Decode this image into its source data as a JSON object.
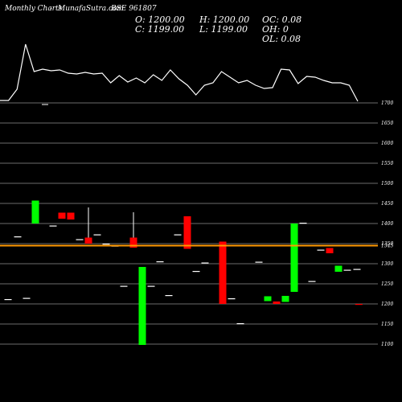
{
  "header": {
    "title": "Monthly Charts",
    "source": "MunafaSutra.com",
    "symbol": "BSE 961807"
  },
  "ohlc": {
    "open": "O: 1200.00",
    "high": "H: 1200.00",
    "oc": "OC: 0.08",
    "close": "C: 1199.00",
    "low": "L: 1199.00",
    "oh": "OH: 0",
    "ol": "OL: 0.08"
  },
  "colors": {
    "background": "#000000",
    "up": "#00ff00",
    "down": "#ff0000",
    "neutral": "#ffffff",
    "reference_line": "#ff9900"
  },
  "chart_data": {
    "type": "candlestick",
    "y_ticks": [
      1700,
      1650,
      1600,
      1550,
      1500,
      1450,
      1400,
      1350,
      1300,
      1250,
      1200,
      1150,
      1100
    ],
    "y_tick_labels": [
      "1700",
      "1650",
      "1600",
      "1550",
      "1500",
      "1450",
      "1400",
      "1350",
      "1300",
      "1250",
      "1200",
      "1150",
      "1100"
    ],
    "ylim": [
      1100,
      1700
    ],
    "reference_level": 1345,
    "reference_label": "1345",
    "grid": true,
    "volume_line": [
      70,
      70,
      56,
      0,
      34,
      31,
      33,
      32,
      36,
      37,
      35,
      37,
      36,
      48,
      39,
      47,
      42,
      48,
      38,
      45,
      32,
      43,
      51,
      63,
      51,
      48,
      34,
      41,
      48,
      45,
      51,
      55,
      54,
      31,
      32,
      49,
      40,
      41,
      45,
      48,
      48,
      51,
      71
    ],
    "candles": [
      {
        "o": 1212,
        "h": 1212,
        "l": 1212,
        "c": 1212
      },
      {
        "o": 1368,
        "h": 1368,
        "l": 1368,
        "c": 1368
      },
      {
        "o": 1215,
        "h": 1215,
        "l": 1215,
        "c": 1215
      },
      {
        "o": 1400,
        "h": 1457,
        "l": 1400,
        "c": 1457
      },
      {
        "o": 1395,
        "h": 1395,
        "l": 1395,
        "c": 1395
      },
      {
        "o": 1427,
        "h": 1427,
        "l": 1412,
        "c": 1412
      },
      {
        "o": 1427,
        "h": 1427,
        "l": 1410,
        "c": 1410
      },
      {
        "o": 1361,
        "h": 1361,
        "l": 1361,
        "c": 1361
      },
      {
        "o": 1365,
        "h": 1440,
        "l": 1350,
        "c": 1350
      },
      {
        "o": 1373,
        "h": 1373,
        "l": 1373,
        "c": 1373
      },
      {
        "o": 1350,
        "h": 1350,
        "l": 1350,
        "c": 1350
      },
      {
        "o": 1345,
        "h": 1345,
        "l": 1345,
        "c": 1345
      },
      {
        "o": 1245,
        "h": 1245,
        "l": 1245,
        "c": 1245
      },
      {
        "o": 1365,
        "h": 1428,
        "l": 1340,
        "c": 1340
      },
      {
        "o": 1098,
        "h": 1292,
        "l": 1098,
        "c": 1292
      },
      {
        "o": 1245,
        "h": 1245,
        "l": 1245,
        "c": 1245
      },
      {
        "o": 1306,
        "h": 1306,
        "l": 1306,
        "c": 1306
      },
      {
        "o": 1222,
        "h": 1222,
        "l": 1222,
        "c": 1222
      },
      {
        "o": 1373,
        "h": 1373,
        "l": 1373,
        "c": 1373
      },
      {
        "o": 1418,
        "h": 1418,
        "l": 1337,
        "c": 1337
      },
      {
        "o": 1282,
        "h": 1282,
        "l": 1282,
        "c": 1282
      },
      {
        "o": 1303,
        "h": 1303,
        "l": 1303,
        "c": 1303
      },
      {
        "o": 1355,
        "h": 1355,
        "l": 1200,
        "c": 1200
      },
      {
        "o": 1214,
        "h": 1214,
        "l": 1214,
        "c": 1214
      },
      {
        "o": 1152,
        "h": 1152,
        "l": 1152,
        "c": 1152
      },
      {
        "o": 1305,
        "h": 1305,
        "l": 1305,
        "c": 1305
      },
      {
        "o": 1207,
        "h": 1219,
        "l": 1207,
        "c": 1219
      },
      {
        "o": 1206,
        "h": 1206,
        "l": 1200,
        "c": 1200
      },
      {
        "o": 1205,
        "h": 1220,
        "l": 1205,
        "c": 1220
      },
      {
        "o": 1230,
        "h": 1400,
        "l": 1230,
        "c": 1400
      },
      {
        "o": 1402,
        "h": 1402,
        "l": 1402,
        "c": 1402
      },
      {
        "o": 1257,
        "h": 1257,
        "l": 1257,
        "c": 1257
      },
      {
        "o": 1335,
        "h": 1335,
        "l": 1335,
        "c": 1335
      },
      {
        "o": 1339,
        "h": 1339,
        "l": 1326,
        "c": 1326
      },
      {
        "o": 1280,
        "h": 1295,
        "l": 1280,
        "c": 1295
      },
      {
        "o": 1285,
        "h": 1285,
        "l": 1285,
        "c": 1285
      },
      {
        "o": 1287,
        "h": 1287,
        "l": 1287,
        "c": 1287
      },
      {
        "o": 1200,
        "h": 1200,
        "l": 1199,
        "c": 1199
      }
    ]
  }
}
